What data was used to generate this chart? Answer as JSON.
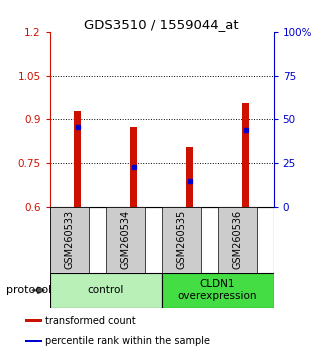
{
  "title": "GDS3510 / 1559044_at",
  "samples": [
    "GSM260533",
    "GSM260534",
    "GSM260535",
    "GSM260536"
  ],
  "bar_base": 0.6,
  "bar_tops": [
    0.93,
    0.875,
    0.805,
    0.955
  ],
  "blue_markers": [
    0.875,
    0.738,
    0.688,
    0.863
  ],
  "ylim_left": [
    0.6,
    1.2
  ],
  "ylim_right": [
    0,
    100
  ],
  "yticks_left": [
    0.6,
    0.75,
    0.9,
    1.05,
    1.2
  ],
  "yticks_right": [
    0,
    25,
    50,
    75,
    100
  ],
  "ytick_labels_left": [
    "0.6",
    "0.75",
    "0.9",
    "1.05",
    "1.2"
  ],
  "ytick_labels_right": [
    "0",
    "25",
    "50",
    "75",
    "100%"
  ],
  "bar_color": "#cc1100",
  "blue_color": "#0000cc",
  "groups": [
    {
      "label": "control",
      "samples": [
        0,
        1
      ],
      "color": "#b8f0b8"
    },
    {
      "label": "CLDN1\noverexpression",
      "samples": [
        2,
        3
      ],
      "color": "#44dd44"
    }
  ],
  "protocol_label": "protocol",
  "legend_items": [
    {
      "color": "#cc1100",
      "label": "transformed count"
    },
    {
      "color": "#0000cc",
      "label": "percentile rank within the sample"
    }
  ],
  "bg_color": "#ffffff",
  "sample_box_color": "#cccccc",
  "bar_width": 0.12
}
